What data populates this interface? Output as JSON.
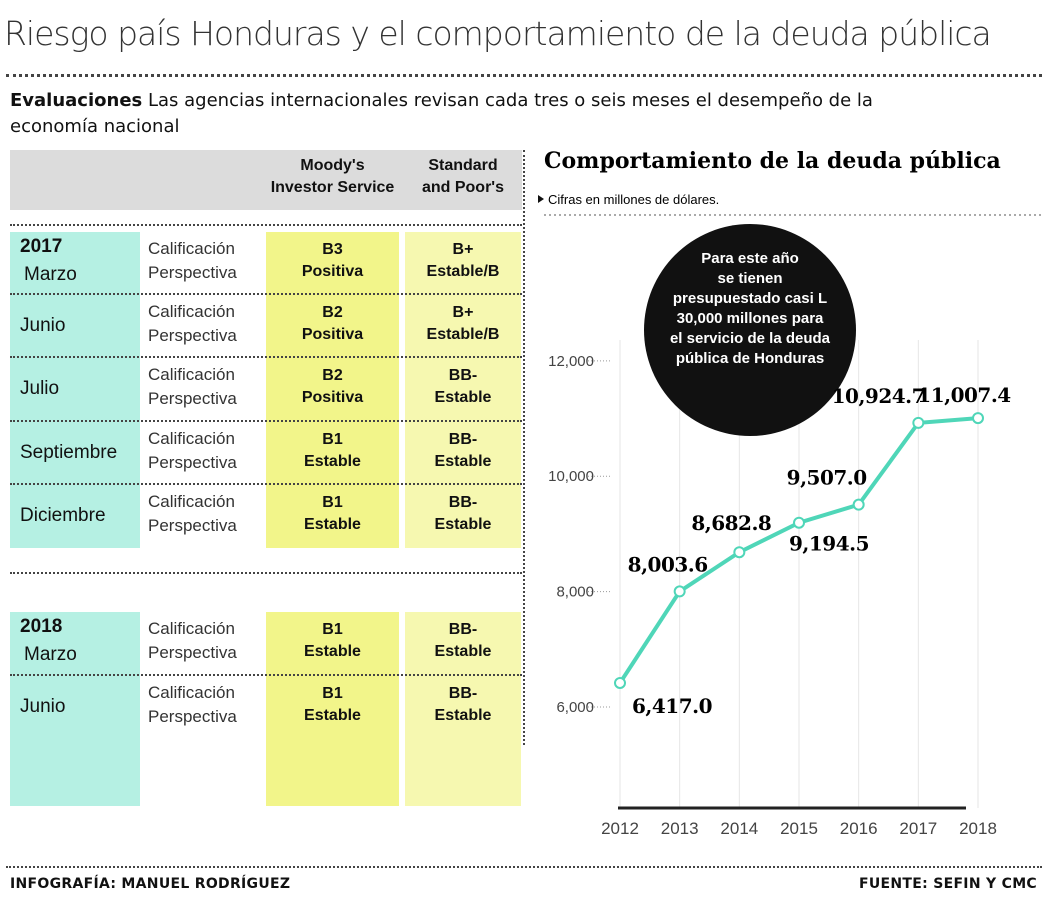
{
  "header": {
    "title": "Riesgo país Honduras y el comportamiento de la deuda pública"
  },
  "intro": {
    "lead": "Evaluaciones",
    "text": "Las agencias internacionales revisan cada tres o seis meses el desempeño de la economía nacional"
  },
  "table": {
    "headers": [
      [
        "Moody's",
        "Investor Service"
      ],
      [
        "Standard",
        "and Poor's"
      ]
    ],
    "row_labels": [
      "Calificación",
      "Perspectiva"
    ],
    "groups": [
      {
        "year": "2017",
        "rows": [
          {
            "month": "Marzo",
            "moodys": [
              "B3",
              "Positiva"
            ],
            "sp": [
              "B+",
              "Estable/B"
            ]
          },
          {
            "month": "Junio",
            "moodys": [
              "B2",
              "Positiva"
            ],
            "sp": [
              "B+",
              "Estable/B"
            ]
          },
          {
            "month": "Julio",
            "moodys": [
              "B2",
              "Positiva"
            ],
            "sp": [
              "BB-",
              "Estable"
            ]
          },
          {
            "month": "Septiembre",
            "moodys": [
              "B1",
              "Estable"
            ],
            "sp": [
              "BB-",
              "Estable"
            ]
          },
          {
            "month": "Diciembre",
            "moodys": [
              "B1",
              "Estable"
            ],
            "sp": [
              "BB-",
              "Estable"
            ]
          }
        ]
      },
      {
        "year": "2018",
        "rows": [
          {
            "month": "Marzo",
            "moodys": [
              "B1",
              "Estable"
            ],
            "sp": [
              "BB-",
              "Estable"
            ]
          },
          {
            "month": "Junio",
            "moodys": [
              "B1",
              "Estable"
            ],
            "sp": [
              "BB-",
              "Estable"
            ]
          }
        ]
      }
    ]
  },
  "chart_data": {
    "type": "line",
    "title": "Comportamiento de la deuda pública",
    "subtitle": "Cifras en millones de dólares.",
    "annotation": "Para este año se tienen presupuestado casi L 30,000 millones para el servicio de la deuda pública de Honduras",
    "x": [
      2012,
      2013,
      2014,
      2015,
      2016,
      2017,
      2018
    ],
    "values": [
      6417.0,
      8003.6,
      8682.8,
      9194.5,
      9507.0,
      10924.7,
      11007.4
    ],
    "value_labels": [
      "6,417.0",
      "8,003.6",
      "8,682.8",
      "9,194.5",
      "9,507.0",
      "10,924.7",
      "11,007.4"
    ],
    "color": "#4fd6b8",
    "xlim": [
      2012,
      2018
    ],
    "xticks": [
      2012,
      2013,
      2014,
      2015,
      2016,
      2017,
      2018
    ],
    "ylim": [
      4250,
      12950
    ],
    "yticks": [
      {
        "value": 6000,
        "label": "6,000"
      },
      {
        "value": 8000,
        "label": "8,000"
      },
      {
        "value": 10000,
        "label": "10,000"
      },
      {
        "value": 12000,
        "label": "12,000"
      }
    ],
    "grid": true
  },
  "footer": {
    "credit": "INFOGRAFÍA: MANUEL RODRÍGUEZ",
    "source": "FUENTE: SEFIN Y CMC"
  }
}
